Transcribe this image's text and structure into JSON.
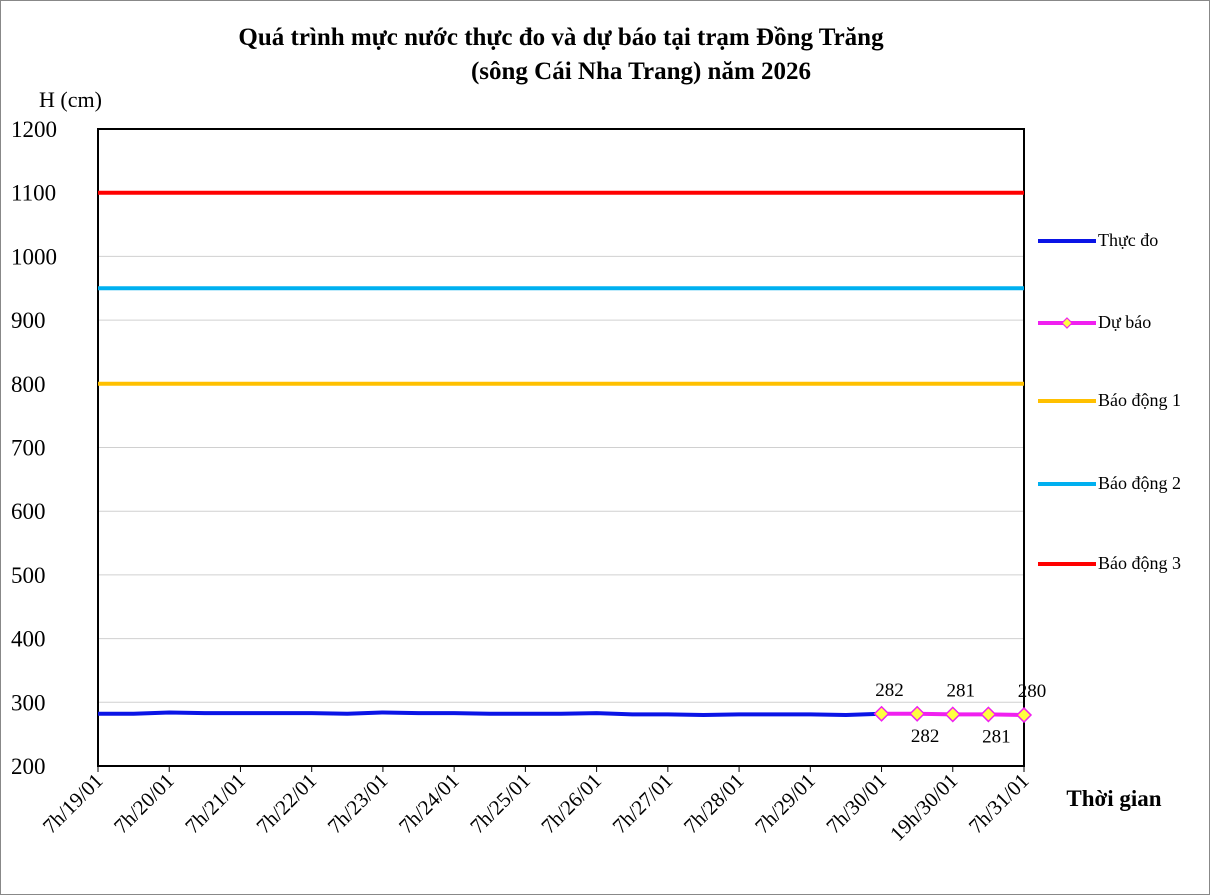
{
  "chart_data": {
    "type": "line",
    "title": [
      "Quá trình mực nước thực đo và dự báo tại trạm Đồng Trăng",
      "(sông Cái Nha Trang) năm 2026"
    ],
    "y_label": "H (cm)",
    "x_label": "Thời gian",
    "categories": [
      "7h/19/01",
      null,
      "7h/20/01",
      null,
      "7h/21/01",
      null,
      "7h/22/01",
      null,
      "7h/23/01",
      null,
      "7h/24/01",
      null,
      "7h/25/01",
      null,
      "7h/26/01",
      null,
      "7h/27/01",
      null,
      "7h/28/01",
      null,
      "7h/29/01",
      null,
      "7h/30/01",
      null,
      "19h/30/01",
      null,
      "7h/31/01"
    ],
    "ylim": [
      200,
      1200
    ],
    "yticks": [
      200,
      300,
      400,
      500,
      600,
      700,
      800,
      900,
      1000,
      1100,
      1200
    ],
    "grid": true,
    "legend": "right",
    "series": [
      {
        "name": "Thực đo",
        "color": "#0a14e6",
        "values": [
          282,
          282,
          284,
          283,
          283,
          283,
          283,
          282,
          284,
          283,
          283,
          282,
          282,
          282,
          283,
          281,
          281,
          280,
          281,
          281,
          281,
          280,
          282,
          null,
          null,
          null,
          null
        ]
      },
      {
        "name": "Dự báo",
        "color": "#f020f0",
        "marker": "diamond",
        "marker_color": "#ffff40",
        "data_labels": true,
        "values": [
          null,
          null,
          null,
          null,
          null,
          null,
          null,
          null,
          null,
          null,
          null,
          null,
          null,
          null,
          null,
          null,
          null,
          null,
          null,
          null,
          null,
          null,
          282,
          282,
          281,
          281,
          280
        ]
      },
      {
        "name": "Báo động 1",
        "color": "#ffc000",
        "values": [
          800,
          800,
          800,
          800,
          800,
          800,
          800,
          800,
          800,
          800,
          800,
          800,
          800,
          800,
          800,
          800,
          800,
          800,
          800,
          800,
          800,
          800,
          800,
          800,
          800,
          800,
          800
        ]
      },
      {
        "name": "Báo động 2",
        "color": "#00b0f0",
        "values": [
          950,
          950,
          950,
          950,
          950,
          950,
          950,
          950,
          950,
          950,
          950,
          950,
          950,
          950,
          950,
          950,
          950,
          950,
          950,
          950,
          950,
          950,
          950,
          950,
          950,
          950,
          950
        ]
      },
      {
        "name": "Báo động 3",
        "color": "#ff0000",
        "values": [
          1100,
          1100,
          1100,
          1100,
          1100,
          1100,
          1100,
          1100,
          1100,
          1100,
          1100,
          1100,
          1100,
          1100,
          1100,
          1100,
          1100,
          1100,
          1100,
          1100,
          1100,
          1100,
          1100,
          1100,
          1100,
          1100,
          1100
        ]
      }
    ]
  }
}
